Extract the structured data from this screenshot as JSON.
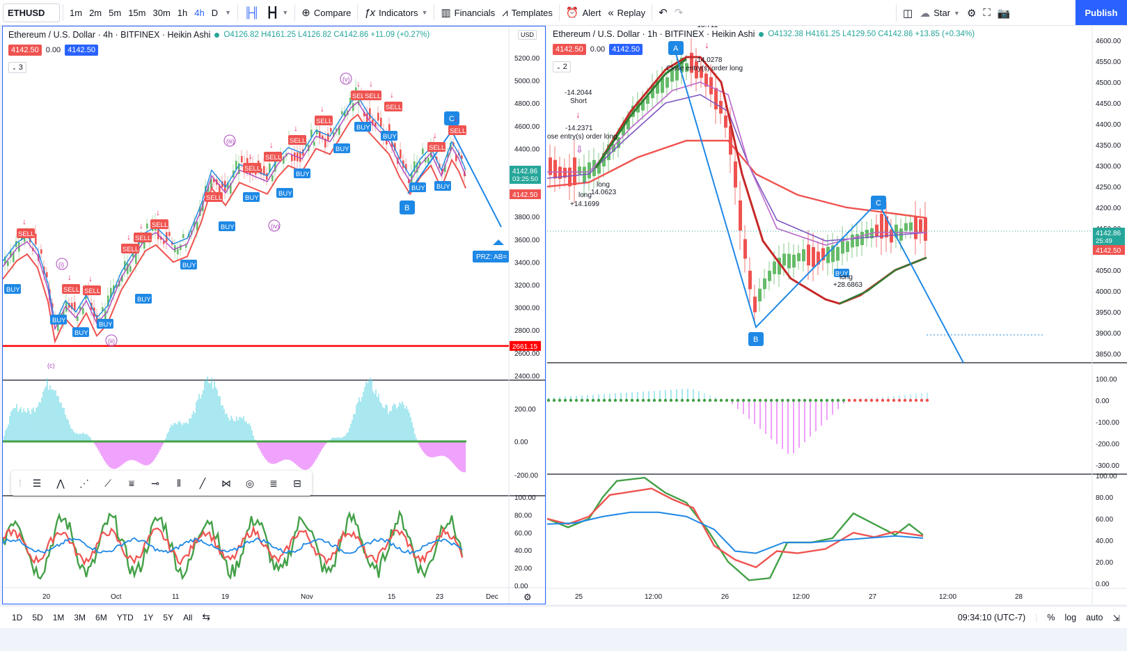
{
  "colors": {
    "accent": "#2962ff",
    "up": "#26a69a",
    "down": "#ef5350",
    "ma_red": "#ef5350",
    "ma_purple": "#ab47bc",
    "ma_blue": "#1e88e5",
    "ma_green": "#43a047"
  },
  "toolbar": {
    "symbol": "ETHUSD",
    "intervals": [
      "1m",
      "2m",
      "5m",
      "15m",
      "30m",
      "1h",
      "4h",
      "D"
    ],
    "active_interval": "4h",
    "compare": "Compare",
    "indicators": "Indicators",
    "financials": "Financials",
    "templates": "Templates",
    "alert": "Alert",
    "replay": "Replay",
    "star": "Star",
    "publish": "Publish"
  },
  "left_chart": {
    "title": "Ethereum / U.S. Dollar · 4h · BITFINEX · Heikin Ashi",
    "ohlc": {
      "o": "O4126.82",
      "h": "H4161.25",
      "l": "L4126.82",
      "c": "C4142.86",
      "chg": "+11.09 (+0.27%)"
    },
    "bid": "4142.50",
    "spread": "0.00",
    "ask": "4142.50",
    "collapse_count": "3",
    "currency": "USD",
    "price_axis": [
      "5200.00",
      "5000.00",
      "4800.00",
      "4600.00",
      "4400.00",
      "4200.00",
      "4000.00",
      "3800.00",
      "3600.00",
      "3400.00",
      "3200.00",
      "3000.00",
      "2800.00",
      "2600.00",
      "2400.00"
    ],
    "last_price": "4142.86",
    "countdown": "03:25:50",
    "last_price_red": "4142.50",
    "hline_label": "2661.15",
    "prz_label": "PRZ: AB=",
    "osc_axis": [
      "200.00",
      "0.00",
      "-200.00"
    ],
    "rsi_axis": [
      "100.00",
      "80.00",
      "60.00",
      "40.00",
      "20.00",
      "0.00"
    ],
    "time_axis": [
      "20",
      "Oct",
      "11",
      "19",
      "Nov",
      "15",
      "23",
      "Dec"
    ],
    "wave_labels": [
      "(i)",
      "(ii)",
      "(iii)",
      "(iv)",
      "(v)",
      "B",
      "C",
      "(c)",
      "(C)"
    ],
    "point_labels": {
      "b": "B",
      "c": "C"
    },
    "signals": {
      "buy": "BUY",
      "sell": "SELL"
    }
  },
  "right_chart": {
    "title": "Ethereum / U.S. Dollar · 1h · BITFINEX · Heikin Ashi",
    "ohlc": {
      "o": "O4132.38",
      "h": "H4161.25",
      "l": "L4129.50",
      "c": "C4142.86",
      "chg": "+13.85 (+0.34%)"
    },
    "bid": "4142.50",
    "spread": "0.00",
    "ask": "4142.50",
    "collapse_count": "2",
    "price_axis": [
      "4600.00",
      "4550.00",
      "4500.00",
      "4450.00",
      "4400.00",
      "4350.00",
      "4300.00",
      "4250.00",
      "4200.00",
      "4150.00",
      "4100.00",
      "4050.00",
      "4000.00",
      "3950.00",
      "3900.00",
      "3850.00"
    ],
    "last_price": "4142.86",
    "countdown": "25:49",
    "last_price_red": "4142.50",
    "osc_axis": [
      "100.00",
      "0.00",
      "-100.00",
      "-200.00",
      "-300.00"
    ],
    "rsi_axis": [
      "100.00",
      "80.00",
      "60.00",
      "40.00",
      "20.00",
      "0.00"
    ],
    "time_axis": [
      "25",
      "12:00",
      "26",
      "12:00",
      "27",
      "12:00",
      "28"
    ],
    "point_labels": {
      "a": "A",
      "b": "B",
      "c": "C"
    },
    "annotations": {
      "short_val": "-14.2044",
      "short": "Short",
      "short2": "-14.2371",
      "close_entry_left": "ose entry(s) order long",
      "long1": "long",
      "long1_val": "+14.1699",
      "long2": "long",
      "long2_val": "14.0623",
      "top_val": "-13.711",
      "top_val2": "-14.0278",
      "close_entry_top": "Close entry(s) order long",
      "buy": "BUY",
      "long3": "long",
      "long3_val": "+28.6863"
    }
  },
  "bottom": {
    "ranges": [
      "1D",
      "5D",
      "1M",
      "3M",
      "6M",
      "YTD",
      "1Y",
      "5Y",
      "All"
    ],
    "clock": "09:34:10 (UTC-7)",
    "pct": "%",
    "log": "log",
    "auto": "auto"
  }
}
